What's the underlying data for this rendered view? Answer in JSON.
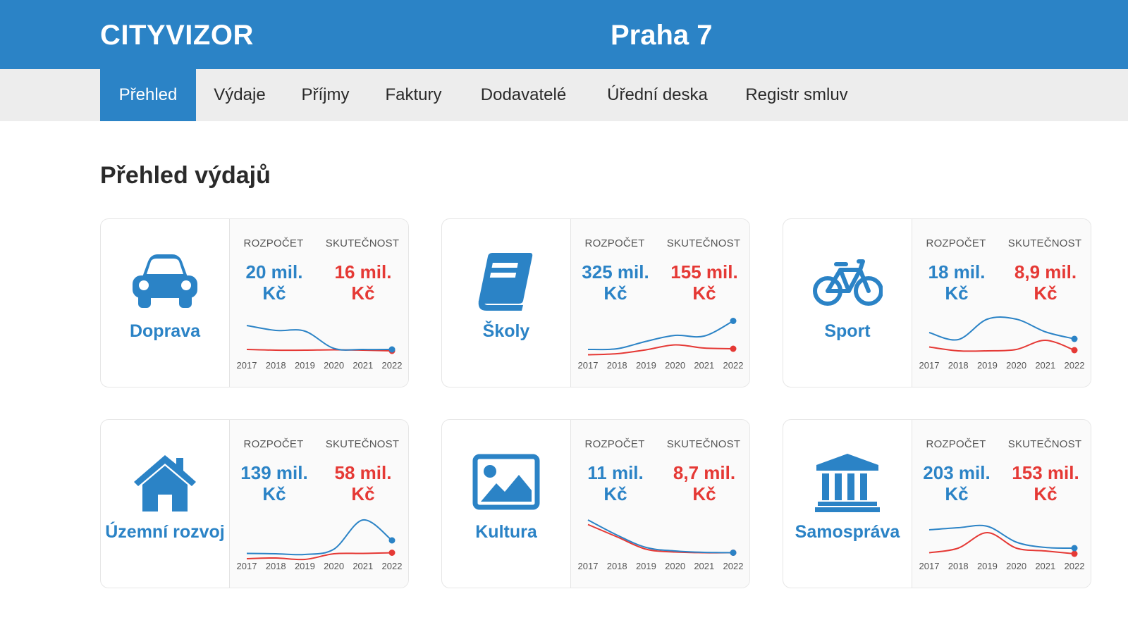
{
  "header": {
    "logo": "CITYVIZOR",
    "city": "Praha 7"
  },
  "nav": [
    {
      "label": "Přehled",
      "active": true
    },
    {
      "label": "Výdaje"
    },
    {
      "label": "Příjmy"
    },
    {
      "label": "Faktury"
    },
    {
      "label": "Dodavatelé"
    },
    {
      "label": "Úřední deska"
    },
    {
      "label": "Registr smluv"
    }
  ],
  "section_title": "Přehled výdajů",
  "labels": {
    "budget": "ROZPOČET",
    "actual": "SKUTEČNOST"
  },
  "colors": {
    "brand": "#2b83c6",
    "budget": "#2b83c6",
    "actual": "#e53935"
  },
  "cards": [
    {
      "name": "Doprava",
      "icon": "car-icon",
      "budget": "20 mil.",
      "actual": "16 mil.",
      "currency": "Kč"
    },
    {
      "name": "Školy",
      "icon": "book-icon",
      "budget": "325 mil.",
      "actual": "155 mil.",
      "currency": "Kč"
    },
    {
      "name": "Sport",
      "icon": "bicycle-icon",
      "budget": "18 mil.",
      "actual": "8,9 mil.",
      "currency": "Kč"
    },
    {
      "name": "Územní rozvoj",
      "icon": "house-icon",
      "budget": "139 mil.",
      "actual": "58 mil.",
      "currency": "Kč"
    },
    {
      "name": "Kultura",
      "icon": "image-icon",
      "budget": "11 mil.",
      "actual": "8,7 mil.",
      "currency": "Kč"
    },
    {
      "name": "Samospráva",
      "icon": "government-building-icon",
      "budget": "203 mil.",
      "actual": "153 mil.",
      "currency": "Kč"
    }
  ],
  "chart_data": [
    {
      "type": "line",
      "x": [
        "2017",
        "2018",
        "2019",
        "2020",
        "2021",
        "2022"
      ],
      "series": [
        {
          "values": [
            0.8,
            0.66,
            0.64,
            0.15,
            0.12,
            0.12
          ]
        },
        {
          "values": [
            0.12,
            0.1,
            0.1,
            0.11,
            0.1,
            0.08
          ]
        }
      ]
    },
    {
      "type": "line",
      "x": [
        "2017",
        "2018",
        "2019",
        "2020",
        "2021",
        "2022"
      ],
      "series": [
        {
          "values": [
            0.12,
            0.14,
            0.35,
            0.52,
            0.5,
            0.93
          ]
        },
        {
          "values": [
            -0.03,
            0.0,
            0.11,
            0.25,
            0.16,
            0.14
          ]
        }
      ]
    },
    {
      "type": "line",
      "x": [
        "2017",
        "2018",
        "2019",
        "2020",
        "2021",
        "2022"
      ],
      "series": [
        {
          "values": [
            0.6,
            0.4,
            0.98,
            0.98,
            0.62,
            0.42
          ]
        },
        {
          "values": [
            0.19,
            0.08,
            0.08,
            0.12,
            0.38,
            0.1
          ]
        }
      ]
    },
    {
      "type": "line",
      "x": [
        "2017",
        "2018",
        "2019",
        "2020",
        "2021",
        "2022"
      ],
      "series": [
        {
          "values": [
            0.03,
            0.02,
            0.0,
            0.15,
            0.98,
            0.4
          ]
        },
        {
          "values": [
            -0.12,
            -0.1,
            -0.14,
            0.02,
            0.03,
            0.05
          ]
        }
      ]
    },
    {
      "type": "line",
      "x": [
        "2017",
        "2018",
        "2019",
        "2020",
        "2021",
        "2022"
      ],
      "series": [
        {
          "values": [
            0.98,
            0.55,
            0.2,
            0.1,
            0.06,
            0.05
          ]
        },
        {
          "values": [
            0.85,
            0.5,
            0.15,
            0.07,
            0.05,
            0.05
          ]
        }
      ]
    },
    {
      "type": "line",
      "x": [
        "2017",
        "2018",
        "2019",
        "2020",
        "2021",
        "2022"
      ],
      "series": [
        {
          "values": [
            0.7,
            0.76,
            0.8,
            0.35,
            0.2,
            0.18
          ]
        },
        {
          "values": [
            0.05,
            0.18,
            0.62,
            0.18,
            0.1,
            0.02
          ]
        }
      ]
    }
  ]
}
